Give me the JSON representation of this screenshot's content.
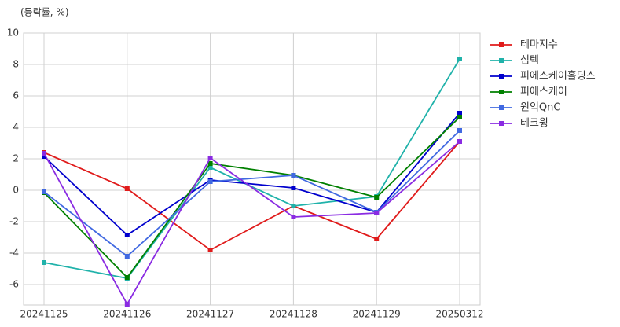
{
  "chart_data": {
    "type": "line",
    "y_label": "(등락률, %)",
    "categories": [
      "20241125",
      "20241126",
      "20241127",
      "20241128",
      "20241129",
      "20250312"
    ],
    "series": [
      {
        "name": "테마지수",
        "color": "#e01b1b",
        "values": [
          2.4,
          0.1,
          -3.8,
          -1.0,
          -3.1,
          3.1
        ]
      },
      {
        "name": "심텍",
        "color": "#20b2aa",
        "values": [
          -4.6,
          -5.6,
          1.45,
          -1.0,
          -0.4,
          8.35
        ]
      },
      {
        "name": "피에스케이홀딩스",
        "color": "#0000cd",
        "values": [
          2.15,
          -2.85,
          0.65,
          0.15,
          -1.4,
          4.9
        ]
      },
      {
        "name": "피에스케이",
        "color": "#008000",
        "values": [
          -0.15,
          -5.55,
          1.7,
          0.95,
          -0.45,
          4.65
        ]
      },
      {
        "name": "원익QnC",
        "color": "#4169e1",
        "values": [
          -0.1,
          -4.2,
          0.55,
          0.95,
          -1.4,
          3.8
        ]
      },
      {
        "name": "테크윙",
        "color": "#8a2be2",
        "values": [
          2.35,
          -7.25,
          2.05,
          -1.7,
          -1.45,
          3.1
        ]
      }
    ],
    "ylim": [
      -7.3,
      10
    ],
    "yticks": [
      -6,
      -4,
      -2,
      0,
      2,
      4,
      6,
      8,
      10
    ],
    "grid": true,
    "legend": "right"
  }
}
